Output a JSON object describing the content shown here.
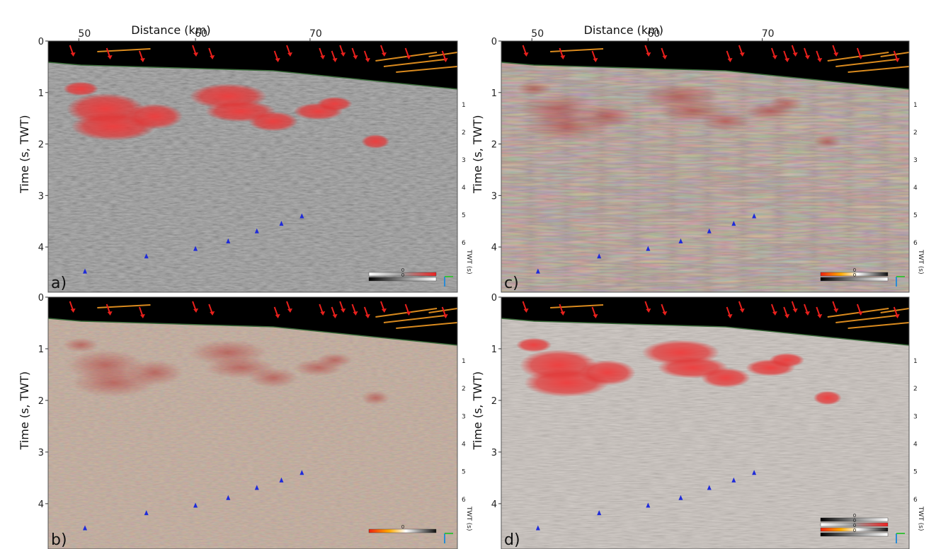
{
  "figure": {
    "panels": [
      {
        "letter": "a)",
        "style": "gray",
        "has_top_axis": true
      },
      {
        "letter": "c)",
        "style": "stripes",
        "has_top_axis": true
      },
      {
        "letter": "b)",
        "style": "tan",
        "has_top_axis": false
      },
      {
        "letter": "d)",
        "style": "lightred",
        "has_top_axis": false
      }
    ],
    "x_axis": {
      "label": "Distance (km)",
      "ticks": [
        "50",
        "60",
        "70"
      ]
    },
    "y_axis": {
      "label": "Time (s, TWT)",
      "ticks": [
        "0",
        "1",
        "2",
        "3",
        "4"
      ]
    },
    "right_axis": {
      "label": "TWT (s)",
      "ticks": [
        "1",
        "2",
        "3",
        "4",
        "5",
        "6"
      ]
    },
    "colorbar_zero": "0",
    "colors": {
      "anomaly_red": "#e8383a",
      "fault_arrow_red": "#e8201c",
      "horizon_orange": "#d98a1e",
      "marker_blue": "#1f2bd9",
      "header_black": "#000000"
    }
  }
}
